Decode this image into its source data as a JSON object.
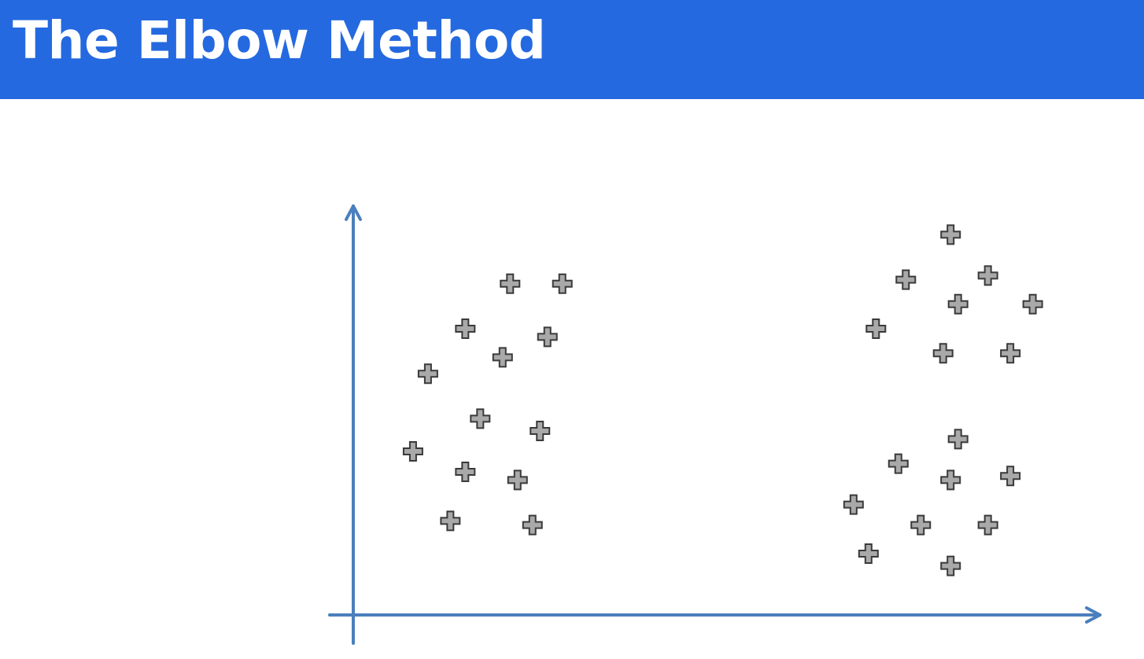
{
  "header": {
    "title": "The Elbow Method"
  },
  "colors": {
    "banner": "#2469e0",
    "title_text": "#ffffff",
    "axis": "#4a7fbe",
    "marker_fill": "#a9a9a9",
    "marker_stroke": "#3a3a3a"
  },
  "chart_data": {
    "type": "scatter",
    "title": "",
    "xlabel": "",
    "ylabel": "",
    "marker": "plus",
    "axes": {
      "arrows": true,
      "ticks": false,
      "grid": false
    },
    "xlim": [
      0,
      100
    ],
    "ylim": [
      0,
      100
    ],
    "series": [
      {
        "points": [
          [
            21,
            81
          ],
          [
            28,
            81
          ],
          [
            15,
            70
          ],
          [
            26,
            68
          ],
          [
            20,
            63
          ],
          [
            10,
            59
          ],
          [
            17,
            48
          ],
          [
            25,
            45
          ],
          [
            8,
            40
          ],
          [
            15,
            35
          ],
          [
            22,
            33
          ],
          [
            13,
            23
          ],
          [
            24,
            22
          ]
        ]
      },
      {
        "points": [
          [
            80,
            93
          ],
          [
            74,
            82
          ],
          [
            85,
            83
          ],
          [
            81,
            76
          ],
          [
            91,
            76
          ],
          [
            70,
            70
          ],
          [
            79,
            64
          ],
          [
            88,
            64
          ],
          [
            81,
            43
          ],
          [
            73,
            37
          ],
          [
            88,
            34
          ],
          [
            80,
            33
          ],
          [
            67,
            27
          ],
          [
            76,
            22
          ],
          [
            85,
            22
          ],
          [
            69,
            15
          ],
          [
            80,
            12
          ]
        ]
      }
    ]
  }
}
